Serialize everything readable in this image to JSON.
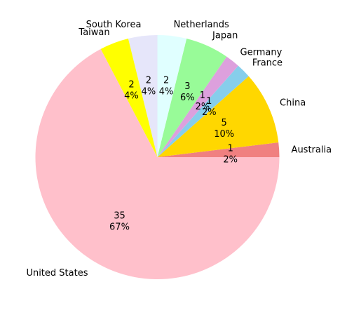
{
  "chart_data": {
    "type": "pie",
    "title": "",
    "slices": [
      {
        "label": "Australia",
        "count": 1,
        "pct": "2%",
        "color": "#f08080"
      },
      {
        "label": "China",
        "count": 5,
        "pct": "10%",
        "color": "#ffd700"
      },
      {
        "label": "France",
        "count": 1,
        "pct": "2%",
        "color": "#87ceeb"
      },
      {
        "label": "Germany",
        "count": 1,
        "pct": "2%",
        "color": "#dda0dd"
      },
      {
        "label": "Japan",
        "count": 3,
        "pct": "6%",
        "color": "#98fb98"
      },
      {
        "label": "Netherlands",
        "count": 2,
        "pct": "4%",
        "color": "#e0ffff"
      },
      {
        "label": "South Korea",
        "count": 2,
        "pct": "4%",
        "color": "#e6e6fa"
      },
      {
        "label": "Taiwan",
        "count": 2,
        "pct": "4%",
        "color": "#ffff00"
      },
      {
        "label": "United States",
        "count": 35,
        "pct": "67%",
        "color": "#ffc0cb"
      }
    ]
  }
}
